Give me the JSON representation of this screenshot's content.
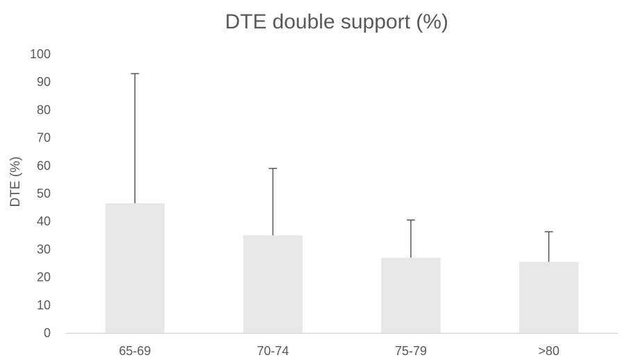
{
  "chart_data": {
    "type": "bar",
    "title": "DTE double support (%)",
    "xlabel": "",
    "ylabel": "DTE (%)",
    "categories": [
      "65-69",
      "70-74",
      "75-79",
      ">80"
    ],
    "values": [
      46.5,
      35,
      27,
      25.5
    ],
    "error_upper": [
      93,
      59,
      40.5,
      36.3
    ],
    "ylim": [
      0,
      100
    ],
    "yticks": [
      0,
      10,
      20,
      30,
      40,
      50,
      60,
      70,
      80,
      90,
      100
    ],
    "grid": false,
    "legend": "none",
    "colors": {
      "bar": "#e7e7e7",
      "error_bar": "#404040",
      "axis": "#d9d9d9",
      "text": "#595959"
    }
  }
}
